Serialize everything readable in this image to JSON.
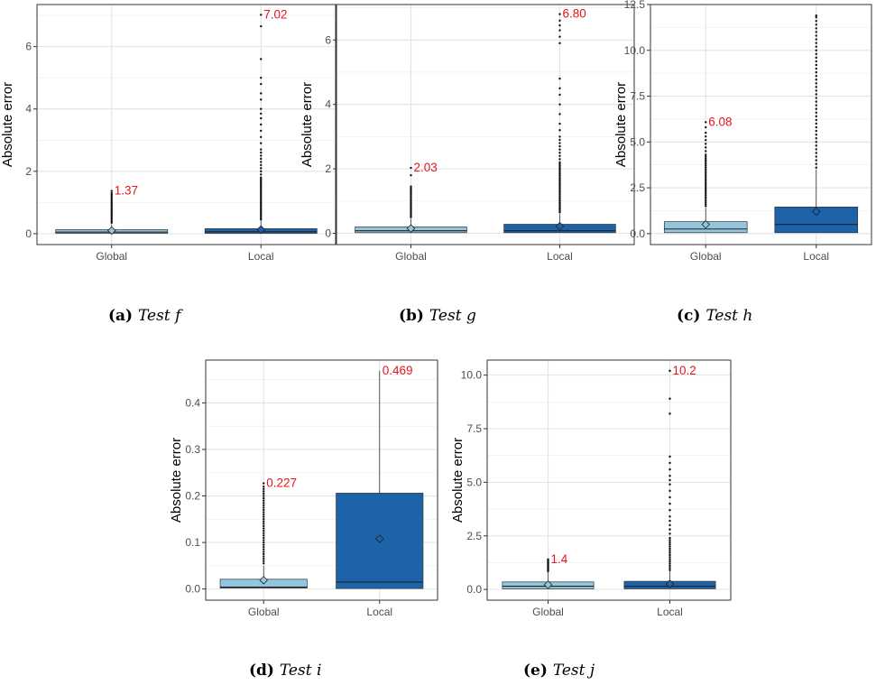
{
  "chart_data": [
    {
      "id": "f",
      "type": "box",
      "caption": {
        "label": "(a)",
        "text": "Test f"
      },
      "ylabel": "Absolute error",
      "ylim": [
        -0.35,
        7.35
      ],
      "yticks": [
        0,
        2,
        4,
        6
      ],
      "ytick_labels": [
        "0",
        "2",
        "4",
        "6"
      ],
      "categories": [
        "Global",
        "Local"
      ],
      "colors": {
        "Global": "#92c5de",
        "Local": "#1c63a9"
      },
      "boxes": [
        {
          "name": "Global",
          "q1": 0.01,
          "median": 0.05,
          "q3": 0.13,
          "mean": 0.1,
          "whisker_high": 0.3,
          "outlier_max": 1.37,
          "outlier_max_label": "1.37",
          "outliers": [
            0.35,
            0.4,
            0.45,
            0.5,
            0.55,
            0.6,
            0.65,
            0.7,
            0.75,
            0.8,
            0.85,
            0.9,
            0.95,
            1.0,
            1.05,
            1.1,
            1.15,
            1.2,
            1.25,
            1.3,
            1.37
          ]
        },
        {
          "name": "Local",
          "q1": 0.01,
          "median": 0.06,
          "q3": 0.16,
          "mean": 0.13,
          "whisker_high": 0.4,
          "outlier_max": 7.02,
          "outlier_max_label": "7.02",
          "outliers": [
            0.45,
            0.5,
            0.55,
            0.6,
            0.65,
            0.7,
            0.75,
            0.8,
            0.85,
            0.9,
            0.95,
            1.0,
            1.05,
            1.1,
            1.15,
            1.2,
            1.25,
            1.3,
            1.35,
            1.4,
            1.45,
            1.5,
            1.55,
            1.6,
            1.65,
            1.7,
            1.75,
            1.8,
            1.9,
            2.0,
            2.1,
            2.2,
            2.3,
            2.4,
            2.5,
            2.6,
            2.7,
            2.9,
            3.1,
            3.3,
            3.5,
            3.7,
            3.85,
            4.0,
            4.3,
            4.5,
            4.8,
            5.0,
            5.6,
            6.65,
            7.02
          ]
        }
      ]
    },
    {
      "id": "g",
      "type": "box",
      "caption": {
        "label": "(b)",
        "text": "Test g"
      },
      "ylabel": "Absolute error",
      "ylim": [
        -0.35,
        7.1
      ],
      "yticks": [
        0,
        2,
        4,
        6
      ],
      "ytick_labels": [
        "0",
        "2",
        "4",
        "6"
      ],
      "categories": [
        "Global",
        "Local"
      ],
      "colors": {
        "Global": "#92c5de",
        "Local": "#1c63a9"
      },
      "boxes": [
        {
          "name": "Global",
          "q1": 0.02,
          "median": 0.08,
          "q3": 0.2,
          "mean": 0.15,
          "whisker_high": 0.45,
          "outlier_max": 2.03,
          "outlier_max_label": "2.03",
          "outliers": [
            0.5,
            0.55,
            0.6,
            0.65,
            0.7,
            0.75,
            0.8,
            0.85,
            0.9,
            0.95,
            1.0,
            1.05,
            1.1,
            1.15,
            1.2,
            1.25,
            1.3,
            1.35,
            1.4,
            1.45,
            1.8,
            2.03
          ]
        },
        {
          "name": "Local",
          "q1": 0.02,
          "median": 0.08,
          "q3": 0.28,
          "mean": 0.22,
          "whisker_high": 0.6,
          "outlier_max": 6.8,
          "outlier_max_label": "6.80",
          "outliers": [
            0.65,
            0.7,
            0.75,
            0.8,
            0.85,
            0.9,
            0.95,
            1.0,
            1.05,
            1.1,
            1.15,
            1.2,
            1.25,
            1.3,
            1.35,
            1.4,
            1.45,
            1.5,
            1.55,
            1.6,
            1.65,
            1.7,
            1.75,
            1.8,
            1.85,
            1.9,
            1.95,
            2.0,
            2.05,
            2.1,
            2.15,
            2.2,
            2.3,
            2.4,
            2.5,
            2.6,
            2.7,
            2.8,
            2.9,
            3.0,
            3.2,
            3.4,
            3.7,
            4.0,
            4.3,
            4.5,
            4.8,
            5.9,
            6.1,
            6.3,
            6.45,
            6.6,
            6.8
          ]
        }
      ]
    },
    {
      "id": "h",
      "type": "box",
      "caption": {
        "label": "(c)",
        "text": "Test h"
      },
      "ylabel": "Absolute error",
      "ylim": [
        -0.6,
        12.5
      ],
      "yticks": [
        0,
        2.5,
        5,
        7.5,
        10,
        12.5
      ],
      "ytick_labels": [
        "0.0",
        "2.5",
        "5.0",
        "7.5",
        "10.0",
        "12.5"
      ],
      "categories": [
        "Global",
        "Local"
      ],
      "colors": {
        "Global": "#92c5de",
        "Local": "#1c63a9"
      },
      "boxes": [
        {
          "name": "Global",
          "q1": 0.05,
          "median": 0.25,
          "q3": 0.65,
          "mean": 0.5,
          "whisker_high": 1.4,
          "outlier_max": 6.08,
          "outlier_max_label": "6.08",
          "outliers": [
            1.5,
            1.6,
            1.7,
            1.8,
            1.9,
            2.0,
            2.1,
            2.2,
            2.3,
            2.4,
            2.5,
            2.6,
            2.7,
            2.8,
            2.9,
            3.0,
            3.1,
            3.2,
            3.3,
            3.4,
            3.5,
            3.6,
            3.7,
            3.8,
            3.9,
            4.0,
            4.1,
            4.2,
            4.3,
            4.5,
            4.7,
            4.9,
            5.1,
            5.3,
            5.5,
            5.8,
            6.08
          ]
        },
        {
          "name": "Local",
          "q1": 0.05,
          "median": 0.5,
          "q3": 1.45,
          "mean": 1.2,
          "whisker_high": 3.5,
          "outlier_max": 11.9,
          "outlier_max_label": "",
          "outliers": [
            3.6,
            3.8,
            4.0,
            4.2,
            4.4,
            4.6,
            4.8,
            5.0,
            5.2,
            5.4,
            5.6,
            5.8,
            6.0,
            6.2,
            6.4,
            6.6,
            6.8,
            7.0,
            7.2,
            7.4,
            7.6,
            7.8,
            8.0,
            8.2,
            8.4,
            8.6,
            8.8,
            9.0,
            9.2,
            9.4,
            9.6,
            9.8,
            10.0,
            10.2,
            10.4,
            10.6,
            10.8,
            11.0,
            11.2,
            11.4,
            11.6,
            11.8,
            11.9
          ]
        }
      ]
    },
    {
      "id": "i",
      "type": "box",
      "caption": {
        "label": "(d)",
        "text": "Test i"
      },
      "ylabel": "Absolute error",
      "ylim": [
        -0.024,
        0.492
      ],
      "yticks": [
        0,
        0.1,
        0.2,
        0.3,
        0.4
      ],
      "ytick_labels": [
        "0.0",
        "0.1",
        "0.2",
        "0.3",
        "0.4"
      ],
      "categories": [
        "Global",
        "Local"
      ],
      "colors": {
        "Global": "#92c5de",
        "Local": "#1c63a9"
      },
      "boxes": [
        {
          "name": "Global",
          "q1": 0.002,
          "median": 0.004,
          "q3": 0.021,
          "mean": 0.019,
          "whisker_high": 0.05,
          "outlier_max": 0.227,
          "outlier_max_label": "0.227",
          "outliers": [
            0.055,
            0.06,
            0.065,
            0.07,
            0.075,
            0.08,
            0.085,
            0.09,
            0.095,
            0.1,
            0.105,
            0.11,
            0.115,
            0.12,
            0.125,
            0.13,
            0.135,
            0.14,
            0.145,
            0.15,
            0.155,
            0.16,
            0.165,
            0.17,
            0.175,
            0.18,
            0.185,
            0.19,
            0.195,
            0.2,
            0.205,
            0.21,
            0.215,
            0.22,
            0.227
          ]
        },
        {
          "name": "Local",
          "q1": 0.001,
          "median": 0.015,
          "q3": 0.206,
          "mean": 0.108,
          "whisker_high": 0.469,
          "outlier_max": 0.469,
          "outlier_max_label": "0.469",
          "outliers": []
        }
      ]
    },
    {
      "id": "j",
      "type": "box",
      "caption": {
        "label": "(e)",
        "text": "Test j"
      },
      "ylabel": "Absolute error",
      "ylim": [
        -0.5,
        10.7
      ],
      "yticks": [
        0,
        2.5,
        5,
        7.5,
        10
      ],
      "ytick_labels": [
        "0.0",
        "2.5",
        "5.0",
        "7.5",
        "10.0"
      ],
      "categories": [
        "Global",
        "Local"
      ],
      "colors": {
        "Global": "#92c5de",
        "Local": "#1c63a9"
      },
      "boxes": [
        {
          "name": "Global",
          "q1": 0.03,
          "median": 0.15,
          "q3": 0.35,
          "mean": 0.22,
          "whisker_high": 0.8,
          "outlier_max": 1.4,
          "outlier_max_label": "1.4",
          "outliers": [
            0.85,
            0.9,
            0.95,
            1.0,
            1.05,
            1.1,
            1.15,
            1.2,
            1.25,
            1.3,
            1.35,
            1.4
          ]
        },
        {
          "name": "Local",
          "q1": 0.03,
          "median": 0.15,
          "q3": 0.38,
          "mean": 0.26,
          "whisker_high": 0.85,
          "outlier_max": 10.2,
          "outlier_max_label": "10.2",
          "outliers": [
            0.9,
            1.0,
            1.1,
            1.2,
            1.3,
            1.4,
            1.5,
            1.6,
            1.7,
            1.8,
            1.9,
            2.0,
            2.1,
            2.2,
            2.3,
            2.4,
            2.6,
            2.8,
            3.0,
            3.2,
            3.4,
            3.7,
            4.0,
            4.3,
            4.6,
            4.9,
            5.1,
            5.3,
            5.6,
            5.9,
            6.2,
            8.2,
            8.9,
            10.2
          ]
        }
      ]
    }
  ]
}
